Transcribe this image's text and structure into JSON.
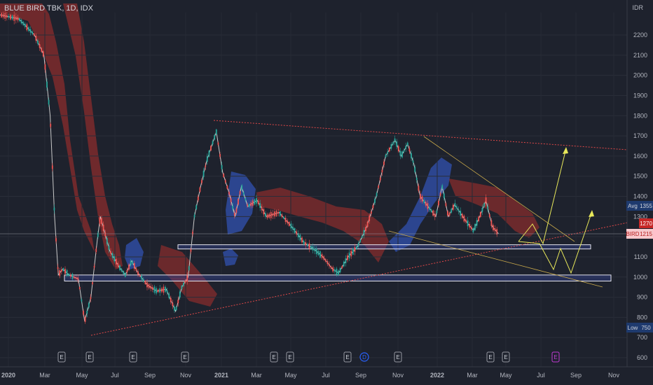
{
  "header": {
    "title": "BLUE BIRD TBK, 1D, IDX",
    "currency": "IDR"
  },
  "chart_data": {
    "type": "candlestick",
    "ylim": [
      600,
      2260
    ],
    "y_ticks": [
      600,
      700,
      800,
      900,
      1000,
      1100,
      1200,
      1300,
      1400,
      1500,
      1600,
      1700,
      1800,
      1900,
      2000,
      2100,
      2200
    ],
    "x_ticks": [
      "2020",
      "Mar",
      "May",
      "Jul",
      "Sep",
      "Nov",
      "2021",
      "Mar",
      "May",
      "Jul",
      "Sep",
      "Nov",
      "2022",
      "Mar",
      "May",
      "Jul",
      "Sep",
      "Nov"
    ],
    "price_path": [
      [
        0,
        2300
      ],
      [
        0.03,
        2280
      ],
      [
        0.055,
        2200
      ],
      [
        0.07,
        2100
      ],
      [
        0.08,
        1800
      ],
      [
        0.087,
        1300
      ],
      [
        0.093,
        1010
      ],
      [
        0.1,
        1040
      ],
      [
        0.11,
        1010
      ],
      [
        0.125,
        990
      ],
      [
        0.135,
        780
      ],
      [
        0.145,
        900
      ],
      [
        0.155,
        1180
      ],
      [
        0.16,
        1300
      ],
      [
        0.175,
        1130
      ],
      [
        0.19,
        1050
      ],
      [
        0.2,
        1010
      ],
      [
        0.21,
        1080
      ],
      [
        0.22,
        1020
      ],
      [
        0.235,
        960
      ],
      [
        0.25,
        930
      ],
      [
        0.265,
        940
      ],
      [
        0.28,
        830
      ],
      [
        0.29,
        950
      ],
      [
        0.3,
        1000
      ],
      [
        0.31,
        1300
      ],
      [
        0.32,
        1450
      ],
      [
        0.33,
        1580
      ],
      [
        0.345,
        1720
      ],
      [
        0.355,
        1520
      ],
      [
        0.365,
        1420
      ],
      [
        0.375,
        1300
      ],
      [
        0.385,
        1450
      ],
      [
        0.395,
        1350
      ],
      [
        0.41,
        1380
      ],
      [
        0.425,
        1300
      ],
      [
        0.445,
        1320
      ],
      [
        0.465,
        1250
      ],
      [
        0.485,
        1170
      ],
      [
        0.5,
        1140
      ],
      [
        0.515,
        1100
      ],
      [
        0.53,
        1040
      ],
      [
        0.54,
        1020
      ],
      [
        0.555,
        1100
      ],
      [
        0.57,
        1150
      ],
      [
        0.585,
        1250
      ],
      [
        0.6,
        1400
      ],
      [
        0.615,
        1600
      ],
      [
        0.63,
        1680
      ],
      [
        0.64,
        1600
      ],
      [
        0.65,
        1660
      ],
      [
        0.66,
        1560
      ],
      [
        0.67,
        1400
      ],
      [
        0.68,
        1360
      ],
      [
        0.695,
        1300
      ],
      [
        0.705,
        1450
      ],
      [
        0.715,
        1300
      ],
      [
        0.725,
        1360
      ],
      [
        0.74,
        1290
      ],
      [
        0.755,
        1230
      ],
      [
        0.765,
        1300
      ],
      [
        0.775,
        1380
      ],
      [
        0.785,
        1250
      ],
      [
        0.795,
        1215
      ]
    ],
    "zones": [
      {
        "low": 1140,
        "high": 1160
      },
      {
        "low": 980,
        "high": 1010
      }
    ],
    "labels": [
      {
        "text": "Avg",
        "value": "1355"
      },
      {
        "text": "",
        "value": "1270"
      },
      {
        "text": "BIRD",
        "value": "1215"
      },
      {
        "text": "Low",
        "value": "750"
      }
    ],
    "event_markers": [
      "E",
      "E",
      "E",
      "E",
      "E",
      "E",
      "E",
      "D",
      "E",
      "E",
      "E",
      "E"
    ],
    "colors": {
      "up": "#26a69a",
      "down": "#ef5350",
      "cloud_red": "#8b2c2c",
      "cloud_blue": "#2f4fa8",
      "arrow": "#e8e85a",
      "trend": "#e04848"
    }
  }
}
